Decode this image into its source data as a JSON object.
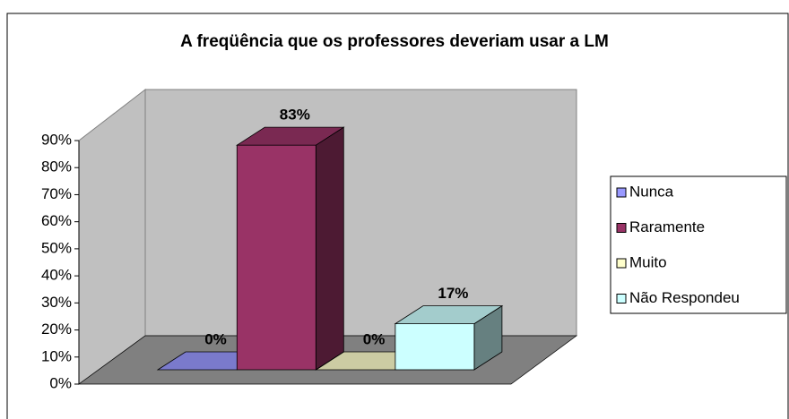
{
  "chart_data": {
    "type": "bar3d",
    "title": "A freqüência que os professores deveriam usar a LM",
    "series": [
      {
        "name": "Nunca",
        "color": "#9999ff",
        "values": [
          0
        ],
        "value_labels": [
          "0%"
        ]
      },
      {
        "name": "Raramente",
        "color": "#993366",
        "values": [
          83
        ],
        "value_labels": [
          "83%"
        ]
      },
      {
        "name": "Muito",
        "color": "#ffffcc",
        "values": [
          0
        ],
        "value_labels": [
          "0%"
        ]
      },
      {
        "name": "Não Respondeu",
        "color": "#ccffff",
        "values": [
          17
        ],
        "value_labels": [
          "17%"
        ]
      }
    ],
    "ylim": [
      0,
      90
    ],
    "yticks": [
      {
        "value": 0,
        "label": "0%"
      },
      {
        "value": 10,
        "label": "10%"
      },
      {
        "value": 20,
        "label": "20%"
      },
      {
        "value": 30,
        "label": "30%"
      },
      {
        "value": 40,
        "label": "40%"
      },
      {
        "value": 50,
        "label": "50%"
      },
      {
        "value": 60,
        "label": "60%"
      },
      {
        "value": 70,
        "label": "70%"
      },
      {
        "value": 80,
        "label": "80%"
      },
      {
        "value": 90,
        "label": "90%"
      }
    ],
    "grid": false,
    "legend": "right"
  }
}
